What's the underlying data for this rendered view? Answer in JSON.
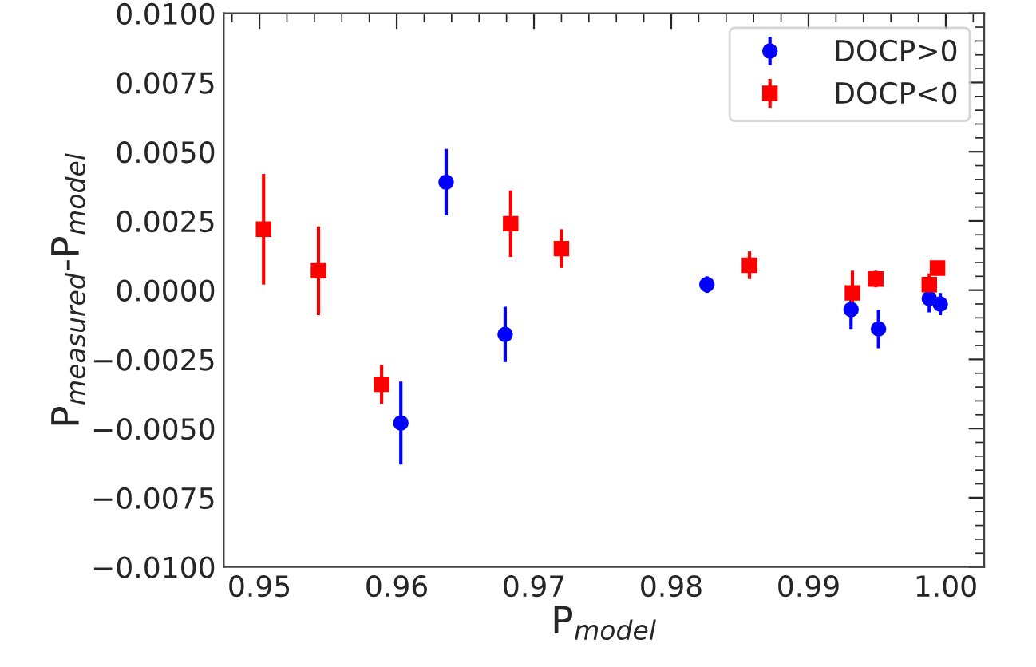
{
  "chart_data": {
    "type": "scatter",
    "xlabel": "P$_{model}$",
    "ylabel": "P$_{measured}$-P$_{model}$",
    "xlim": [
      0.9474,
      1.0028
    ],
    "ylim": [
      -0.01,
      0.01
    ],
    "xticks": [
      {
        "value": 0.95,
        "label": "0.95"
      },
      {
        "value": 0.96,
        "label": "0.96"
      },
      {
        "value": 0.97,
        "label": "0.97"
      },
      {
        "value": 0.98,
        "label": "0.98"
      },
      {
        "value": 0.99,
        "label": "0.99"
      },
      {
        "value": 1.0,
        "label": "1.00"
      }
    ],
    "yticks": [
      {
        "value": -0.01,
        "label": "−0.0100"
      },
      {
        "value": -0.0075,
        "label": "−0.0075"
      },
      {
        "value": -0.005,
        "label": "−0.0050"
      },
      {
        "value": -0.0025,
        "label": "−0.0025"
      },
      {
        "value": 0,
        "label": "0.0000"
      },
      {
        "value": 0.0025,
        "label": "0.0025"
      },
      {
        "value": 0.005,
        "label": "0.0050"
      },
      {
        "value": 0.0075,
        "label": "0.0075"
      },
      {
        "value": 0.01,
        "label": "0.0100"
      }
    ],
    "legend": "top right",
    "grid": false,
    "series": [
      {
        "name": "DOCP>0",
        "color": "#0000ff",
        "marker": "circle",
        "x": [
          0.9603,
          0.9636,
          0.9679,
          0.9826,
          0.9931,
          0.9951,
          0.9988,
          0.9996
        ],
        "values": [
          -0.0048,
          0.0039,
          -0.0016,
          0.0002,
          -0.0007,
          -0.0014,
          -0.0003,
          -0.0005
        ],
        "errors": [
          0.0015,
          0.0012,
          0.001,
          0.0003,
          0.0007,
          0.0007,
          0.0005,
          0.0004
        ]
      },
      {
        "name": "DOCP<0",
        "color": "#ff0000",
        "marker": "square",
        "x": [
          0.9503,
          0.9543,
          0.9589,
          0.9683,
          0.972,
          0.9857,
          0.9932,
          0.9949,
          0.9988,
          0.9994
        ],
        "values": [
          0.0022,
          0.0007,
          -0.0034,
          0.0024,
          0.0015,
          0.0009,
          -0.0001,
          0.0004,
          0.0002,
          0.0008
        ],
        "errors": [
          0.002,
          0.0016,
          0.0007,
          0.0012,
          0.0007,
          0.0005,
          0.0008,
          0.0003,
          0.0004,
          0.0001
        ]
      }
    ]
  }
}
